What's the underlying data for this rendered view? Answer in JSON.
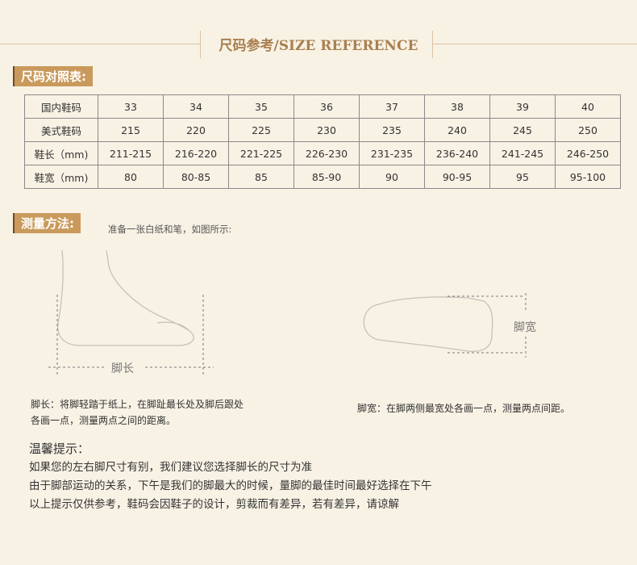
{
  "header": {
    "title": "尺码参考/SIZE REFERENCE"
  },
  "size_table": {
    "label": "尺码对照表:",
    "rows": [
      {
        "head": "国内鞋码",
        "cells": [
          "33",
          "34",
          "35",
          "36",
          "37",
          "38",
          "39",
          "40"
        ]
      },
      {
        "head": "美式鞋码",
        "cells": [
          "215",
          "220",
          "225",
          "230",
          "235",
          "240",
          "245",
          "250"
        ]
      },
      {
        "head": "鞋长（mm)",
        "cells": [
          "211-215",
          "216-220",
          "221-225",
          "226-230",
          "231-235",
          "236-240",
          "241-245",
          "246-250"
        ]
      },
      {
        "head": "鞋宽（mm)",
        "cells": [
          "80",
          "80-85",
          "85",
          "85-90",
          "90",
          "90-95",
          "95",
          "95-100"
        ]
      }
    ]
  },
  "method": {
    "label": "测量方法:",
    "intro": "准备一张白纸和笔，如图所示:",
    "length_label": "脚长",
    "width_label": "脚宽",
    "length_desc_1": "脚长：将脚轻踏于纸上，在脚趾最长处及脚后跟处",
    "length_desc_2": "各画一点，测量两点之间的距离。",
    "width_desc": "脚宽：在脚两侧最宽处各画一点，测量两点间距。"
  },
  "tips": {
    "title": "温馨提示：",
    "lines": [
      "如果您的左右脚尺寸有别，我们建议您选择脚长的尺寸为准",
      "由于脚部运动的关系，下午是我们的脚最大的时候，量脚的最佳时间最好选择在下午",
      "以上提示仅供参考，鞋码会因鞋子的设计，剪裁而有差异，若有差异，请谅解"
    ]
  },
  "colors": {
    "accent": "#c99a5b",
    "background": "#f8f2e5"
  }
}
